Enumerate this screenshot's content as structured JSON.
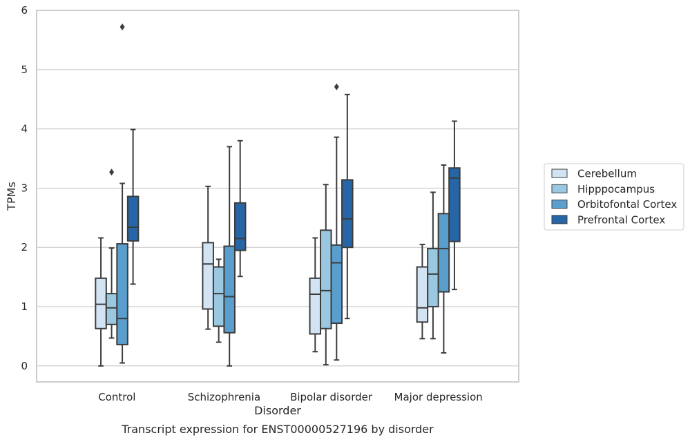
{
  "chart_data": {
    "type": "box",
    "caption": "Transcript expression for ENST00000527196 by disorder",
    "xlabel": "Disorder",
    "ylabel": "TPMs",
    "ylim": [
      -0.27,
      6.0
    ],
    "yticks": [
      0,
      1,
      2,
      3,
      4,
      5,
      6
    ],
    "grid": true,
    "legend_position": "right",
    "categories": [
      "Control",
      "Schizophrenia",
      "Bipolar disorder",
      "Major depression"
    ],
    "series": [
      {
        "name": "Cerebellum",
        "color": "#d2e3f3",
        "boxes": [
          {
            "whisker_low": 0.0,
            "q1": 0.63,
            "median": 1.04,
            "q3": 1.48,
            "whisker_high": 2.16,
            "outliers": []
          },
          {
            "whisker_low": 0.62,
            "q1": 0.96,
            "median": 1.72,
            "q3": 2.08,
            "whisker_high": 3.03,
            "outliers": []
          },
          {
            "whisker_low": 0.24,
            "q1": 0.54,
            "median": 1.21,
            "q3": 1.48,
            "whisker_high": 2.16,
            "outliers": []
          },
          {
            "whisker_low": 0.46,
            "q1": 0.74,
            "median": 0.98,
            "q3": 1.67,
            "whisker_high": 2.05,
            "outliers": []
          }
        ]
      },
      {
        "name": "Hipppocampus",
        "color": "#9ac8e0",
        "boxes": [
          {
            "whisker_low": 0.47,
            "q1": 0.7,
            "median": 0.98,
            "q3": 1.22,
            "whisker_high": 1.99,
            "outliers": [
              3.27
            ]
          },
          {
            "whisker_low": 0.4,
            "q1": 0.67,
            "median": 1.22,
            "q3": 1.67,
            "whisker_high": 1.8,
            "outliers": []
          },
          {
            "whisker_low": 0.02,
            "q1": 0.63,
            "median": 1.27,
            "q3": 2.29,
            "whisker_high": 3.06,
            "outliers": []
          },
          {
            "whisker_low": 0.46,
            "q1": 1.0,
            "median": 1.55,
            "q3": 1.98,
            "whisker_high": 2.93,
            "outliers": []
          }
        ]
      },
      {
        "name": "Orbitofontal Cortex",
        "color": "#5a9ecd",
        "boxes": [
          {
            "whisker_low": 0.05,
            "q1": 0.36,
            "median": 0.8,
            "q3": 2.06,
            "whisker_high": 3.08,
            "outliers": [
              5.72
            ]
          },
          {
            "whisker_low": 0.0,
            "q1": 0.56,
            "median": 1.17,
            "q3": 2.02,
            "whisker_high": 3.7,
            "outliers": []
          },
          {
            "whisker_low": 0.1,
            "q1": 0.72,
            "median": 1.74,
            "q3": 2.04,
            "whisker_high": 3.86,
            "outliers": [
              4.71
            ]
          },
          {
            "whisker_low": 0.22,
            "q1": 1.25,
            "median": 1.98,
            "q3": 2.57,
            "whisker_high": 3.39,
            "outliers": []
          }
        ]
      },
      {
        "name": "Prefrontal Cortex",
        "color": "#2666a6",
        "boxes": [
          {
            "whisker_low": 1.38,
            "q1": 2.11,
            "median": 2.34,
            "q3": 2.86,
            "whisker_high": 3.99,
            "outliers": []
          },
          {
            "whisker_low": 1.51,
            "q1": 1.95,
            "median": 2.15,
            "q3": 2.75,
            "whisker_high": 3.8,
            "outliers": []
          },
          {
            "whisker_low": 0.8,
            "q1": 2.0,
            "median": 2.48,
            "q3": 3.14,
            "whisker_high": 4.58,
            "outliers": []
          },
          {
            "whisker_low": 1.29,
            "q1": 2.1,
            "median": 3.17,
            "q3": 3.34,
            "whisker_high": 4.13,
            "outliers": []
          }
        ]
      }
    ]
  }
}
